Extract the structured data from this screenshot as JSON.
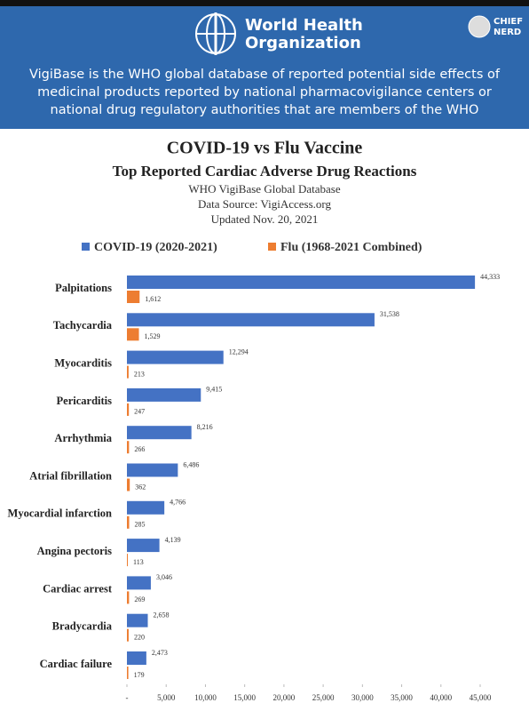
{
  "header": {
    "org_name_line1": "World Health",
    "org_name_line2": "Organization",
    "badge_line1": "CHIEF",
    "badge_line2": "NERD",
    "description": [
      "VigiBase is the WHO global database of reported potential side effects of",
      "medicinal products reported by national pharmacovigilance centers or",
      "national drug regulatory authorities that are members of the WHO"
    ]
  },
  "chart_data": {
    "type": "hbar",
    "title": "COVID-19 vs Flu Vaccine",
    "subtitle": "Top Reported Cardiac Adverse Drug Reactions",
    "notes": [
      "WHO VigiBase Global Database",
      "Data Source: VigiAccess.org",
      "Updated Nov. 20, 2021"
    ],
    "categories": [
      "Palpitations",
      "Tachycardia",
      "Myocarditis",
      "Pericarditis",
      "Arrhythmia",
      "Atrial fibrillation",
      "Myocardial infarction",
      "Angina pectoris",
      "Cardiac arrest",
      "Bradycardia",
      "Cardiac failure"
    ],
    "series": [
      {
        "name": "COVID-19 (2020-2021)",
        "color": "#4472c4",
        "values": [
          44333,
          31538,
          12294,
          9415,
          8216,
          6486,
          4766,
          4139,
          3046,
          2658,
          2473
        ],
        "value_labels": [
          "44,333",
          "31,538",
          "12,294",
          "9,415",
          "8,216",
          "6,486",
          "4,766",
          "4,139",
          "3,046",
          "2,658",
          "2,473"
        ]
      },
      {
        "name": "Flu (1968-2021 Combined)",
        "color": "#ed7d31",
        "values": [
          1612,
          1529,
          213,
          247,
          266,
          362,
          285,
          113,
          269,
          220,
          179
        ],
        "value_labels": [
          "1,612",
          "1,529",
          "213",
          "247",
          "266",
          "362",
          "285",
          "113",
          "269",
          "220",
          "179"
        ]
      }
    ],
    "xlim": [
      0,
      45000
    ],
    "xticks": [
      {
        "value": 0,
        "label": "-"
      },
      {
        "value": 5000,
        "label": "5,000"
      },
      {
        "value": 10000,
        "label": "10,000"
      },
      {
        "value": 15000,
        "label": "15,000"
      },
      {
        "value": 20000,
        "label": "20,000"
      },
      {
        "value": 25000,
        "label": "25,000"
      },
      {
        "value": 30000,
        "label": "30,000"
      },
      {
        "value": 35000,
        "label": "35,000"
      },
      {
        "value": 40000,
        "label": "40,000"
      },
      {
        "value": 45000,
        "label": "45,000"
      }
    ],
    "grid": false
  }
}
